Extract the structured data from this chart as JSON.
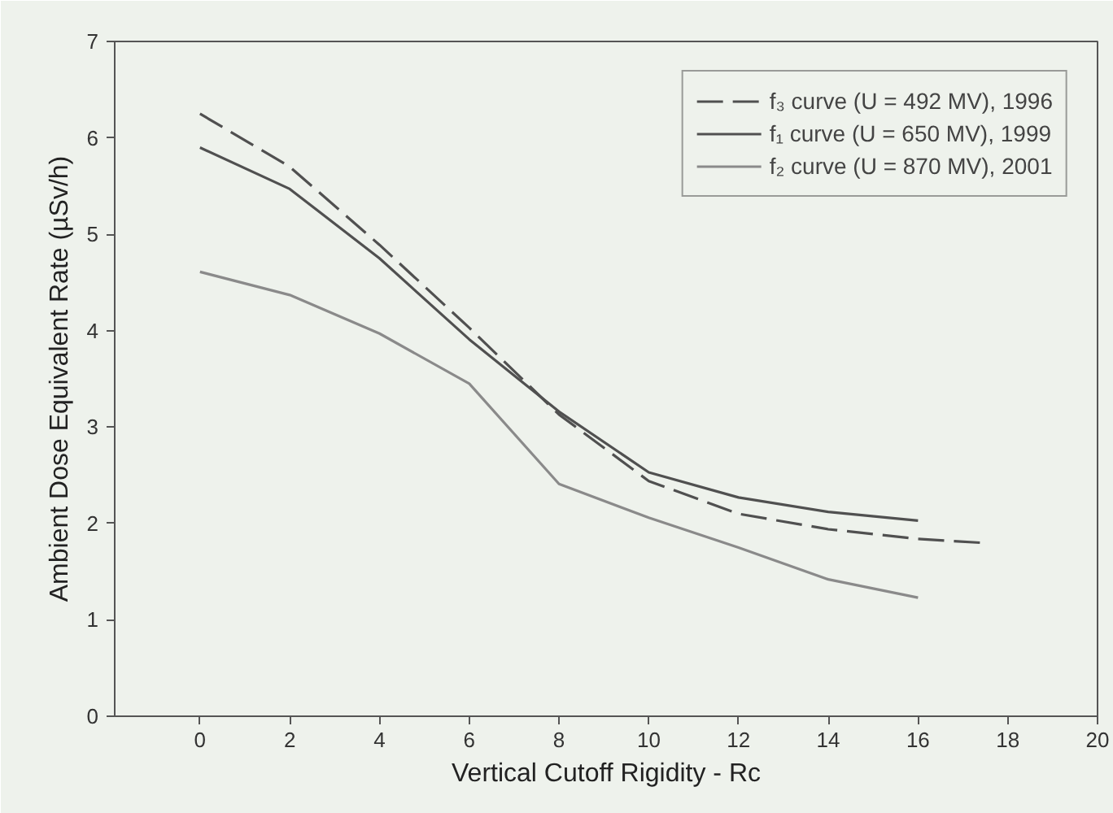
{
  "chart_data": {
    "type": "line",
    "xlabel": "Vertical Cutoff Rigidity - Rc",
    "ylabel": "Ambient Dose Equivalent Rate (µSv/h)",
    "xlim": [
      -1.9,
      20
    ],
    "ylim": [
      0,
      7
    ],
    "xticks": [
      0,
      2,
      4,
      6,
      8,
      10,
      12,
      14,
      16,
      18,
      20
    ],
    "yticks": [
      0,
      1,
      2,
      3,
      4,
      5,
      6,
      7
    ],
    "grid": false,
    "legend": "top right",
    "marker": "none",
    "series": [
      {
        "name": "f₃ curve (U = 492 MV), 1996",
        "color": "#505050",
        "line_style": "dashed",
        "x": [
          0,
          2,
          4,
          6,
          8,
          10,
          12,
          14,
          16,
          17.4
        ],
        "values": [
          6.25,
          5.7,
          4.89,
          4.03,
          3.13,
          2.44,
          2.1,
          1.94,
          1.84,
          1.8
        ]
      },
      {
        "name": "f₁ curve (U = 650 MV), 1999",
        "color": "#505050",
        "line_style": "solid",
        "x": [
          0,
          2,
          4,
          6,
          8,
          10,
          12,
          14,
          16
        ],
        "values": [
          5.9,
          5.47,
          4.75,
          3.91,
          3.16,
          2.53,
          2.27,
          2.12,
          2.03
        ]
      },
      {
        "name": "f₂ curve (U = 870 MV), 2001",
        "color": "#8a8a8a",
        "line_style": "solid",
        "x": [
          0,
          2,
          4,
          6,
          8,
          10,
          12,
          14,
          16
        ],
        "values": [
          4.61,
          4.37,
          3.97,
          3.45,
          2.41,
          2.06,
          1.75,
          1.42,
          1.23
        ]
      }
    ]
  }
}
